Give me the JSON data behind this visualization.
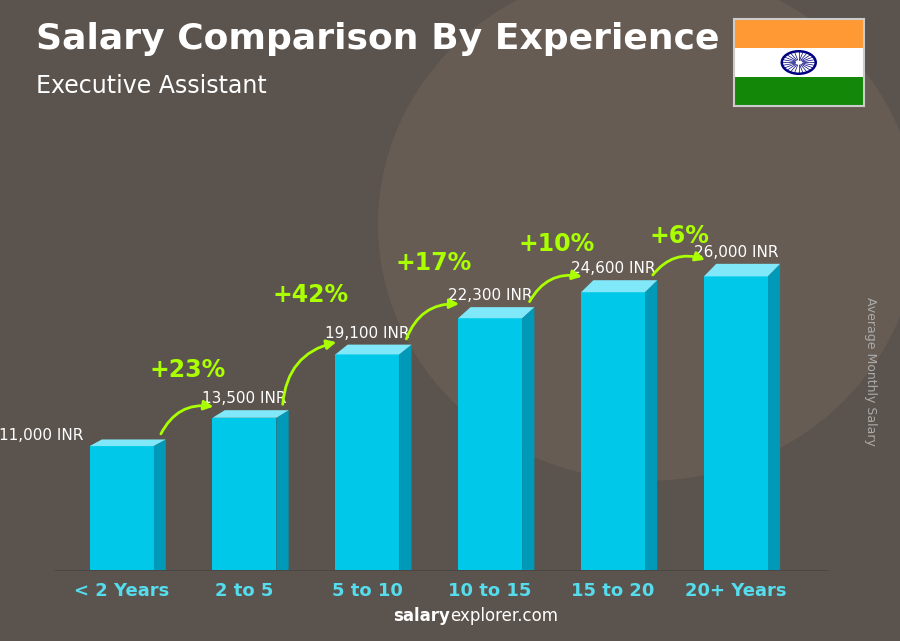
{
  "title": "Salary Comparison By Experience",
  "subtitle": "Executive Assistant",
  "ylabel": "Average Monthly Salary",
  "footer_bold": "salary",
  "footer_regular": "explorer.com",
  "categories": [
    "< 2 Years",
    "2 to 5",
    "5 to 10",
    "10 to 15",
    "15 to 20",
    "20+ Years"
  ],
  "values": [
    11000,
    13500,
    19100,
    22300,
    24600,
    26000
  ],
  "labels": [
    "11,000 INR",
    "13,500 INR",
    "19,100 INR",
    "22,300 INR",
    "24,600 INR",
    "26,000 INR"
  ],
  "label_side": [
    "left",
    "right",
    "right",
    "right",
    "right",
    "right"
  ],
  "pct_changes": [
    "+23%",
    "+42%",
    "+17%",
    "+10%",
    "+6%"
  ],
  "bar_color_face": "#00c8e8",
  "bar_color_side": "#0099b8",
  "bar_color_top": "#80e8f8",
  "bg_color": "#7a6a5a",
  "overlay_alpha": 0.45,
  "title_color": "#ffffff",
  "label_color": "#ffffff",
  "pct_color": "#aaff00",
  "footer_color": "#aaaaaa",
  "ylabel_color": "#aaaaaa",
  "ylim": [
    0,
    34000
  ],
  "flag_saffron": "#FF9933",
  "flag_white": "#FFFFFF",
  "flag_green": "#138808",
  "flag_chakra": "#000080",
  "title_fontsize": 26,
  "subtitle_fontsize": 17,
  "label_fontsize": 11,
  "pct_fontsize": 17,
  "xtick_fontsize": 13,
  "footer_fontsize": 12,
  "ylabel_fontsize": 9,
  "arrow_rad": [
    -0.4,
    -0.4,
    -0.4,
    -0.4,
    -0.4
  ],
  "arc_offsets": [
    3200,
    4200,
    3800,
    3200,
    2500
  ]
}
